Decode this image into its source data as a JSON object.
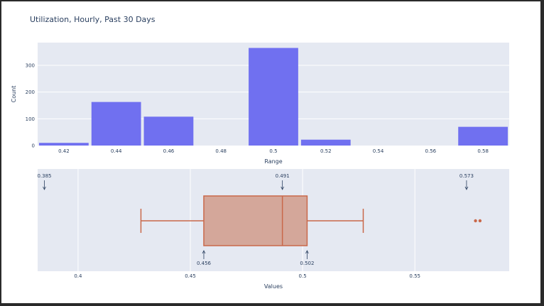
{
  "title": "Utilization, Hourly, Past 30 Days",
  "colors": {
    "bar": "#7070f0",
    "box_line": "#c9684a",
    "box_fill": "#d4a79a",
    "plot_bg": "#e5e9f2",
    "text": "#2a3f5f"
  },
  "chart_data": [
    {
      "type": "bar",
      "xlabel": "Range",
      "ylabel": "Count",
      "categories": [
        "0.42",
        "0.44",
        "0.46",
        "0.48",
        "0.5",
        "0.52",
        "0.54",
        "0.56",
        "0.58"
      ],
      "values": [
        10,
        163,
        108,
        0,
        365,
        22,
        0,
        0,
        70
      ],
      "yticks": [
        0,
        100,
        200,
        300
      ],
      "ylim": [
        0,
        385
      ],
      "grid": true
    },
    {
      "type": "box",
      "xlabel": "Values",
      "xticks": [
        "0.4",
        "0.45",
        "0.5",
        "0.55"
      ],
      "xlim": [
        0.382,
        0.592
      ],
      "whisker_low": 0.428,
      "q1": 0.456,
      "median": 0.491,
      "q3": 0.502,
      "whisker_high": 0.527,
      "outliers": [
        0.577,
        0.579
      ],
      "annotations": [
        {
          "value": 0.385,
          "label": "0.385",
          "side": "top"
        },
        {
          "value": 0.491,
          "label": "0.491",
          "side": "top"
        },
        {
          "value": 0.573,
          "label": "0.573",
          "side": "top"
        },
        {
          "value": 0.456,
          "label": "0.456",
          "side": "bottom"
        },
        {
          "value": 0.502,
          "label": "0.502",
          "side": "bottom"
        }
      ],
      "grid": true
    }
  ]
}
